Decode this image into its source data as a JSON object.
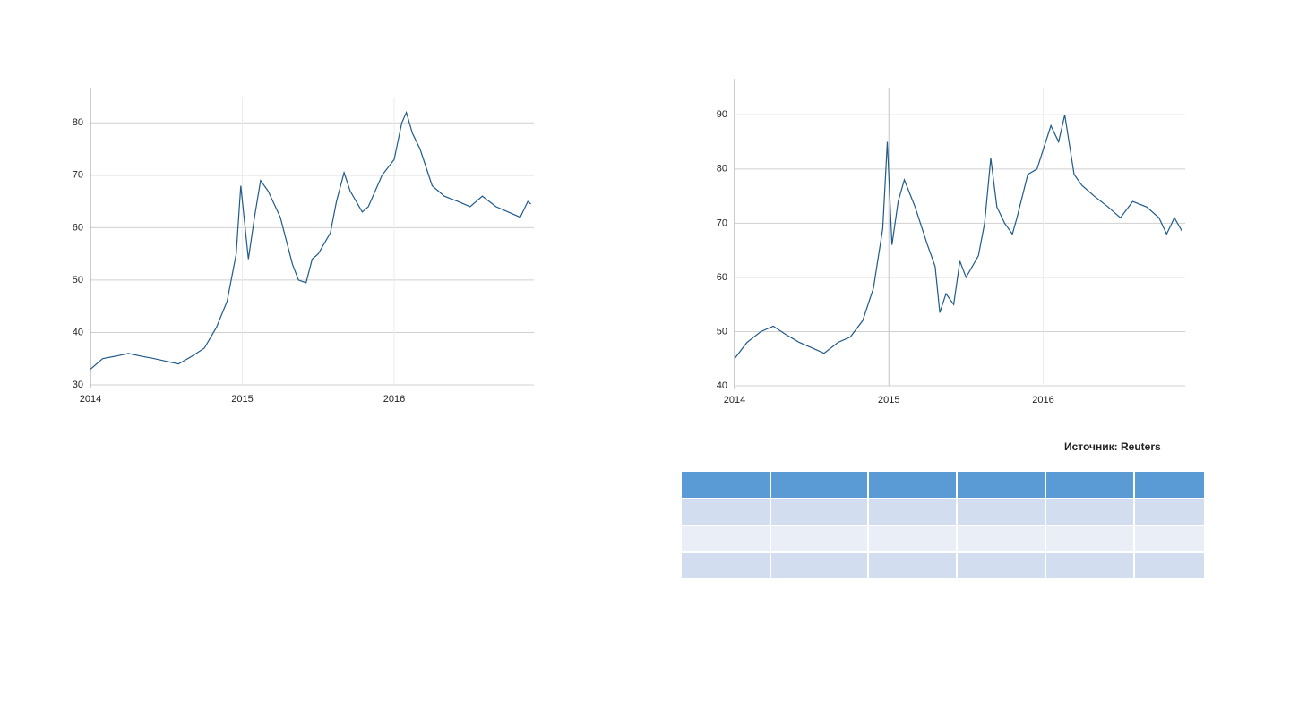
{
  "chart_data": [
    {
      "type": "line",
      "xlim": [
        2014,
        2016.92
      ],
      "xticks": [
        2014,
        2015,
        2016
      ],
      "ylim": [
        30,
        85
      ],
      "yticks": [
        30,
        40,
        50,
        60,
        70,
        80
      ],
      "grid": true,
      "series": [
        {
          "color": "#1f5a8a",
          "x": [
            2014.0,
            2014.08,
            2014.17,
            2014.25,
            2014.33,
            2014.42,
            2014.5,
            2014.58,
            2014.67,
            2014.75,
            2014.83,
            2014.9,
            2014.96,
            2014.99,
            2015.04,
            2015.08,
            2015.12,
            2015.17,
            2015.25,
            2015.33,
            2015.37,
            2015.42,
            2015.46,
            2015.5,
            2015.58,
            2015.62,
            2015.67,
            2015.71,
            2015.79,
            2015.83,
            2015.92,
            2016.0,
            2016.05,
            2016.08,
            2016.12,
            2016.17,
            2016.25,
            2016.33,
            2016.42,
            2016.5,
            2016.58,
            2016.67,
            2016.75,
            2016.83,
            2016.88,
            2016.9
          ],
          "values": [
            33,
            35,
            35.5,
            36,
            35.5,
            35,
            34.5,
            34,
            35.5,
            37,
            41,
            46,
            55,
            68,
            54,
            62,
            69,
            67,
            62,
            53,
            50,
            49.5,
            54,
            55,
            59,
            65,
            70.5,
            67,
            63,
            64,
            70,
            73,
            80,
            82,
            78,
            75,
            68,
            66,
            65,
            64,
            66,
            64,
            63,
            62,
            65,
            64.5
          ]
        }
      ]
    },
    {
      "type": "line",
      "xlim": [
        2014,
        2016.92
      ],
      "xticks": [
        2014,
        2015,
        2016
      ],
      "ylim": [
        40,
        95
      ],
      "yticks": [
        40,
        50,
        60,
        70,
        80,
        90
      ],
      "grid": true,
      "series": [
        {
          "color": "#1f5a8a",
          "x": [
            2014.0,
            2014.08,
            2014.17,
            2014.25,
            2014.33,
            2014.42,
            2014.5,
            2014.58,
            2014.67,
            2014.75,
            2014.83,
            2014.9,
            2014.96,
            2014.99,
            2015.02,
            2015.06,
            2015.1,
            2015.17,
            2015.25,
            2015.3,
            2015.33,
            2015.37,
            2015.42,
            2015.46,
            2015.5,
            2015.58,
            2015.62,
            2015.66,
            2015.7,
            2015.75,
            2015.8,
            2015.83,
            2015.9,
            2015.96,
            2016.05,
            2016.1,
            2016.14,
            2016.2,
            2016.25,
            2016.33,
            2016.42,
            2016.5,
            2016.58,
            2016.67,
            2016.75,
            2016.8,
            2016.85,
            2016.9
          ],
          "values": [
            45,
            48,
            50,
            51,
            49.5,
            48,
            47,
            46,
            48,
            49,
            52,
            58,
            69,
            85,
            66,
            74,
            78,
            73,
            66,
            62,
            53.5,
            57,
            55,
            63,
            60,
            64,
            70,
            82,
            73,
            70,
            68,
            71,
            79,
            80,
            88,
            85,
            90,
            79,
            77,
            75,
            73,
            71,
            74,
            73,
            71,
            68,
            71,
            68.5
          ]
        }
      ]
    }
  ],
  "source": "Источник: Reuters"
}
